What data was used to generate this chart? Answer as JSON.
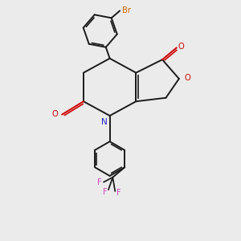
{
  "bg": "#ebebeb",
  "C": "#1a1a1a",
  "N": "#2222cc",
  "O": "#cc0000",
  "Br": "#cc6600",
  "F": "#cc44bb",
  "lw": 1.4,
  "lw_thin": 1.1
}
